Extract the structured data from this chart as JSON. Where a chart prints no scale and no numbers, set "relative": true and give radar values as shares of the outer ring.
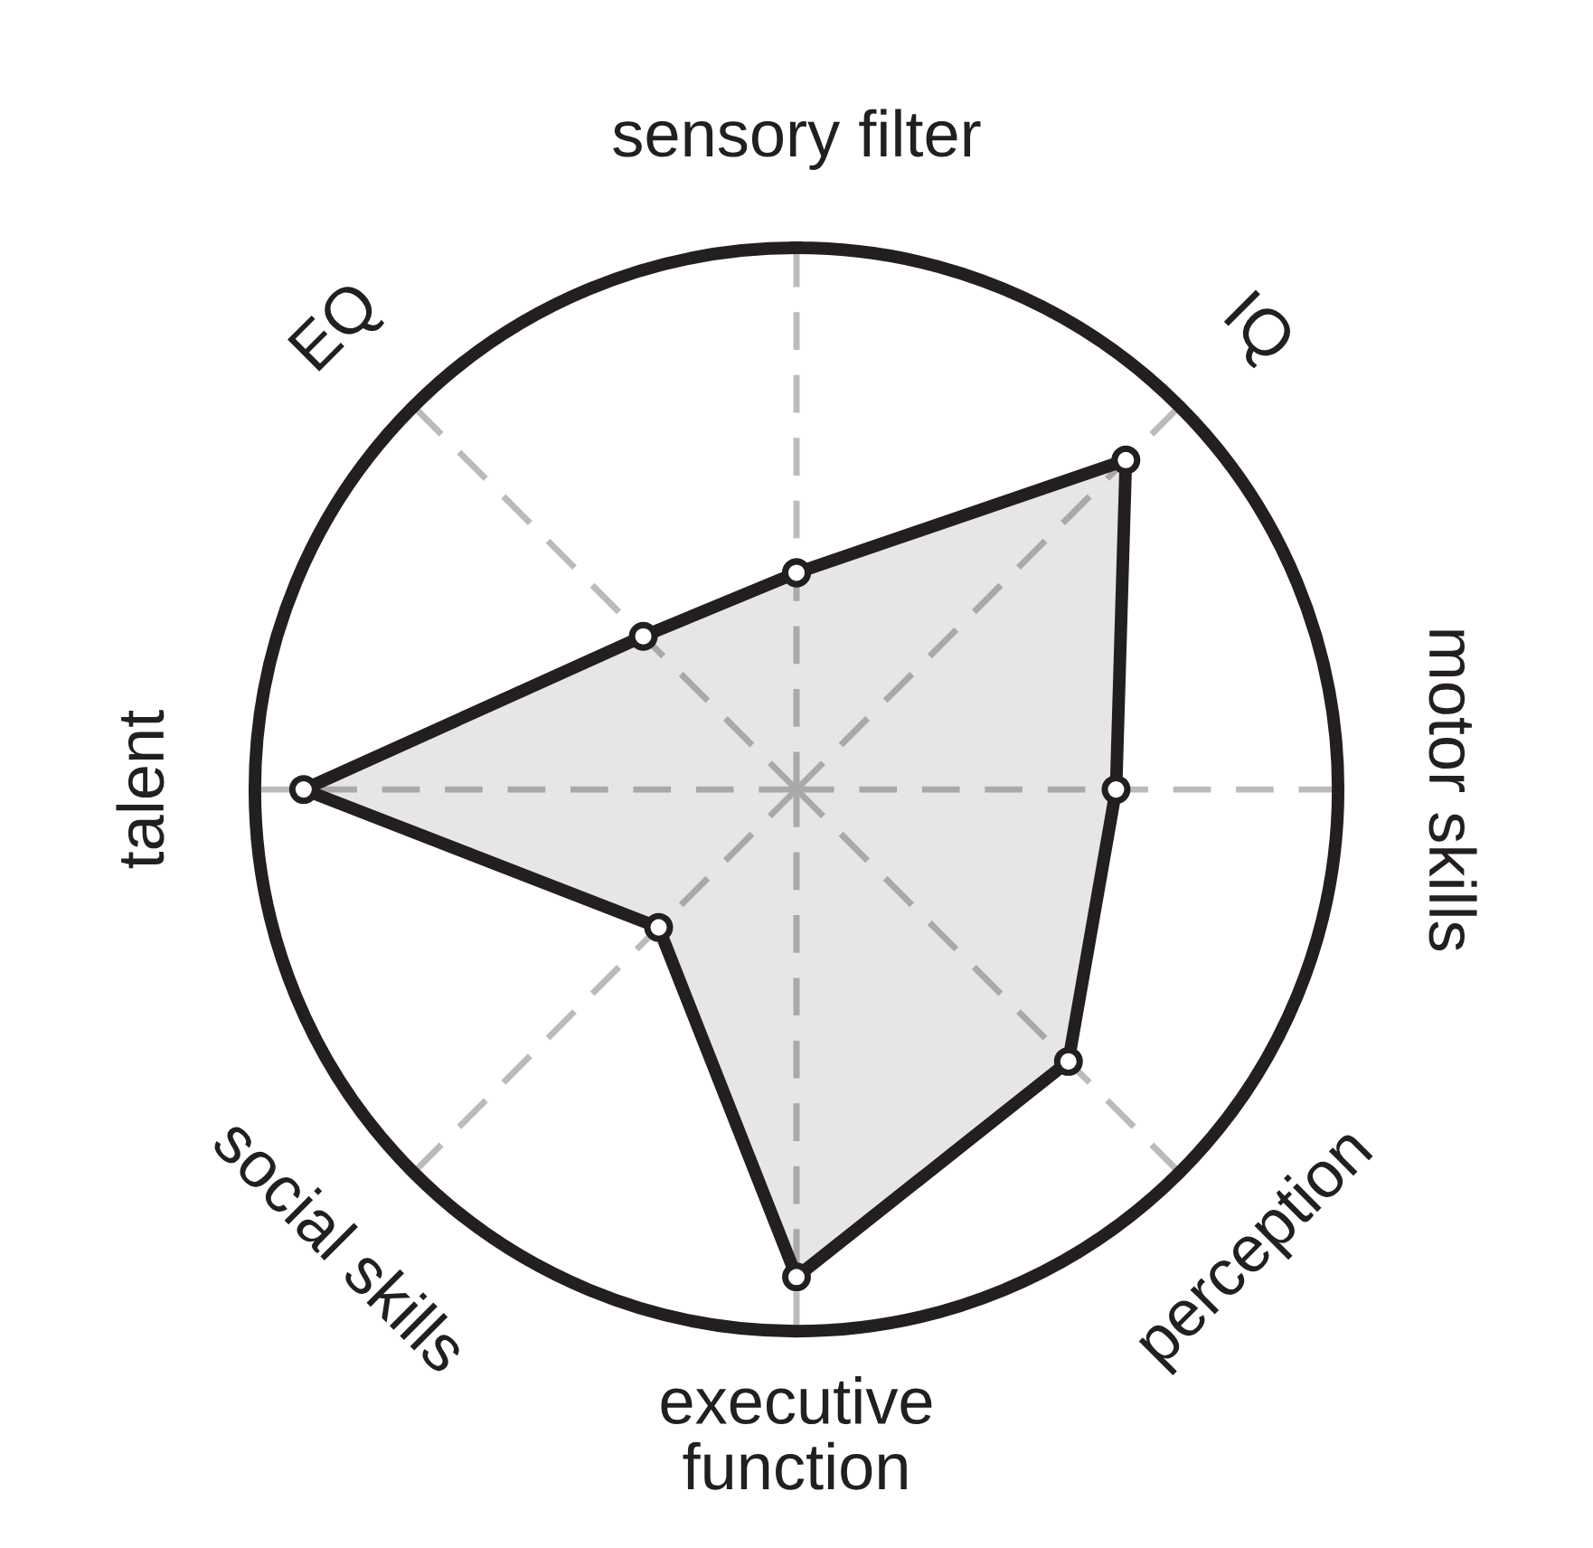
{
  "chart_data": {
    "type": "radar",
    "relative": true,
    "grid": true,
    "marker": "circle",
    "line_style": "solid",
    "categories": [
      "sensory filter",
      "IQ",
      "motor skills",
      "perception",
      "executive\nfunction",
      "social skills",
      "talent",
      "EQ"
    ],
    "series": [
      {
        "color": "#231f20",
        "values": [
          0.4,
          0.86,
          0.59,
          0.71,
          0.9,
          0.36,
          0.91,
          0.4
        ]
      }
    ]
  }
}
